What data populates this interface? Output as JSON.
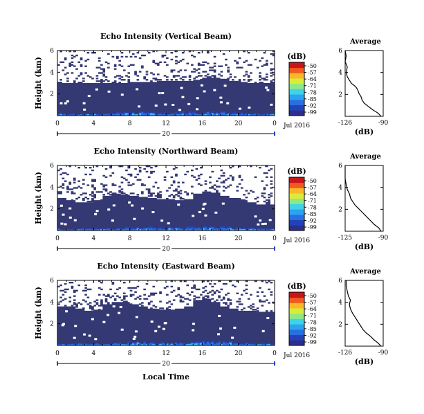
{
  "figure": {
    "xlabel": "Local Time",
    "date_label": "Jul 2016"
  },
  "chart_data": [
    {
      "type": "heatmap",
      "title": "Echo Intensity (Vertical Beam)",
      "ylabel": "Height (km)",
      "x_ticks": [
        "0",
        "4",
        "8",
        "12",
        "16",
        "20",
        "0"
      ],
      "x_range": [
        0,
        24
      ],
      "y_ticks": [
        "2",
        "4",
        "6"
      ],
      "y_range": [
        0,
        6
      ],
      "date_marker": "20",
      "date_label": "Jul 2016",
      "colorbar": {
        "unit": "(dB)",
        "ticks": [
          "-50",
          "-57",
          "-64",
          "-71",
          "-78",
          "-85",
          "-92",
          "-99"
        ]
      },
      "echo_top_km": [
        3.0,
        3.0,
        3.0,
        3.0,
        3.0,
        3.0,
        3.0,
        3.0,
        3.1,
        3.1,
        3.1,
        3.2,
        3.2,
        3.2,
        3.2,
        3.3,
        3.5,
        3.5,
        3.4,
        3.2,
        3.1,
        3.0,
        3.0,
        3.0
      ],
      "profile": {
        "title": "Average",
        "xlabel": "(dB)",
        "x_ticks": [
          "-126",
          "-90"
        ],
        "x_range": [
          -126,
          -90
        ],
        "y_ticks": [
          "2",
          "4",
          "6"
        ],
        "y_range": [
          0,
          6
        ],
        "height_km": [
          0.0,
          0.3,
          0.6,
          0.9,
          1.2,
          1.5,
          1.8,
          2.1,
          2.4,
          2.7,
          3.0,
          3.3,
          3.6,
          4.0,
          4.5,
          5.0,
          5.5,
          6.0
        ],
        "value_db": [
          -92,
          -95,
          -100,
          -104,
          -108,
          -110,
          -111,
          -113,
          -114,
          -116,
          -120,
          -122,
          -124,
          -125,
          -124,
          -126,
          -125,
          -126
        ]
      }
    },
    {
      "type": "heatmap",
      "title": "Echo Intensity (Northward Beam)",
      "ylabel": "Height (km)",
      "x_ticks": [
        "0",
        "4",
        "8",
        "12",
        "16",
        "20",
        "0"
      ],
      "x_range": [
        0,
        24
      ],
      "y_ticks": [
        "2",
        "4",
        "6"
      ],
      "y_range": [
        0,
        6
      ],
      "date_marker": "20",
      "date_label": "Jul 2016",
      "colorbar": {
        "unit": "(dB)",
        "ticks": [
          "-50",
          "-57",
          "-64",
          "-71",
          "-78",
          "-85",
          "-92",
          "-99"
        ]
      },
      "echo_top_km": [
        3.0,
        2.8,
        2.6,
        2.6,
        2.8,
        3.2,
        3.4,
        3.3,
        3.2,
        3.1,
        3.0,
        2.9,
        2.9,
        2.8,
        2.9,
        3.4,
        3.6,
        3.5,
        3.2,
        3.0,
        2.8,
        2.6,
        2.4,
        2.4
      ],
      "profile": {
        "title": "Average",
        "xlabel": "(dB)",
        "x_ticks": [
          "-125",
          "-90"
        ],
        "x_range": [
          -125,
          -90
        ],
        "y_ticks": [
          "2",
          "4",
          "6"
        ],
        "y_range": [
          0,
          6
        ],
        "height_km": [
          0.0,
          0.3,
          0.6,
          0.9,
          1.2,
          1.5,
          1.8,
          2.1,
          2.4,
          2.7,
          3.0,
          3.4,
          3.8,
          4.2,
          4.8,
          5.4,
          6.0
        ],
        "value_db": [
          -92,
          -94,
          -98,
          -101,
          -104,
          -107,
          -110,
          -113,
          -116,
          -118,
          -120,
          -121,
          -123,
          -124,
          -125,
          -125,
          -125
        ]
      }
    },
    {
      "type": "heatmap",
      "title": "Echo Intensity (Eastward Beam)",
      "ylabel": "Height (km)",
      "x_ticks": [
        "0",
        "4",
        "8",
        "12",
        "16",
        "20",
        "0"
      ],
      "x_range": [
        0,
        24
      ],
      "y_ticks": [
        "2",
        "4",
        "6"
      ],
      "y_range": [
        0,
        6
      ],
      "date_marker": "20",
      "date_label": "Jul 2016",
      "colorbar": {
        "unit": "(dB)",
        "ticks": [
          "-50",
          "-57",
          "-64",
          "-71",
          "-78",
          "-85",
          "-92",
          "-99"
        ]
      },
      "echo_top_km": [
        3.6,
        3.6,
        3.4,
        3.2,
        3.3,
        3.8,
        4.0,
        4.0,
        3.8,
        3.6,
        3.4,
        3.3,
        3.3,
        3.4,
        3.6,
        4.2,
        4.3,
        4.0,
        3.6,
        3.4,
        3.2,
        3.2,
        3.1,
        3.1
      ],
      "profile": {
        "title": "Average",
        "xlabel": "(dB)",
        "x_ticks": [
          "-126",
          "-90"
        ],
        "x_range": [
          -126,
          -90
        ],
        "y_ticks": [
          "2",
          "4",
          "6"
        ],
        "y_range": [
          0,
          6
        ],
        "height_km": [
          0.0,
          0.3,
          0.6,
          0.9,
          1.2,
          1.5,
          1.8,
          2.1,
          2.4,
          2.7,
          3.0,
          3.4,
          3.8,
          4.2,
          4.6,
          5.0,
          5.5,
          6.0
        ],
        "value_db": [
          -92,
          -95,
          -99,
          -102,
          -106,
          -109,
          -111,
          -113,
          -115,
          -117,
          -119,
          -121,
          -122,
          -121,
          -123,
          -124,
          -125,
          -125
        ]
      }
    }
  ]
}
